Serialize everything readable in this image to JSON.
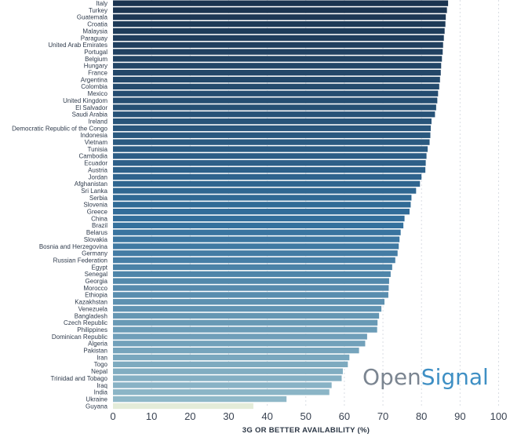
{
  "chart_data": {
    "type": "bar",
    "orientation": "horizontal",
    "categories": [
      "Italy",
      "Turkey",
      "Guatemala",
      "Croatia",
      "Malaysia",
      "Paraguay",
      "United Arab Emirates",
      "Portugal",
      "Belgium",
      "Hungary",
      "France",
      "Argentina",
      "Colombia",
      "Mexico",
      "United Kingdom",
      "El Salvador",
      "Saudi Arabia",
      "Ireland",
      "Democratic Republic of the Congo",
      "Indonesia",
      "Vietnam",
      "Tunisia",
      "Cambodia",
      "Ecuador",
      "Austria",
      "Jordan",
      "Afghanistan",
      "Sri Lanka",
      "Serbia",
      "Slovenia",
      "Greece",
      "China",
      "Brazil",
      "Belarus",
      "Slovakia",
      "Bosnia and Herzegovina",
      "Germany",
      "Russian Federation",
      "Egypt",
      "Senegal",
      "Georgia",
      "Morocco",
      "Ethiopia",
      "Kazakhstan",
      "Venezuela",
      "Bangladesh",
      "Czech Republic",
      "Philippines",
      "Dominican Republic",
      "Algeria",
      "Pakistan",
      "Iran",
      "Togo",
      "Nepal",
      "Trinidad and Tobago",
      "Iraq",
      "India",
      "Ukraine",
      "Guyana"
    ],
    "values": [
      86.9,
      86.6,
      86.3,
      86.2,
      86.0,
      85.8,
      85.6,
      85.5,
      85.3,
      85.1,
      85.0,
      84.8,
      84.6,
      84.3,
      84.1,
      83.8,
      83.5,
      82.6,
      82.4,
      82.3,
      82.1,
      81.6,
      81.3,
      81.1,
      81.0,
      80.0,
      79.6,
      78.6,
      77.4,
      77.2,
      76.9,
      75.6,
      75.3,
      74.6,
      74.3,
      74.1,
      73.8,
      73.2,
      72.4,
      72.0,
      71.6,
      71.5,
      71.4,
      70.4,
      69.6,
      69.0,
      68.6,
      68.5,
      65.9,
      65.4,
      63.8,
      61.3,
      60.9,
      59.6,
      59.3,
      56.7,
      56.1,
      45.0,
      36.4
    ],
    "xlabel": "3G OR BETTER AVAILABILITY (%)",
    "xlim": [
      0,
      100
    ],
    "xticks": [
      "0",
      "10",
      "20",
      "30",
      "40",
      "50",
      "60",
      "70",
      "80",
      "90",
      "100"
    ],
    "grid": true,
    "colors": {
      "top": "#1b3450",
      "middle": "#336f9c",
      "low": "#8fb8c8",
      "last": "#e4ecd9"
    }
  },
  "watermark": {
    "part1": "Open",
    "part2": "Signal",
    "color1": "#7b8591",
    "color2": "#3e8fc4"
  }
}
